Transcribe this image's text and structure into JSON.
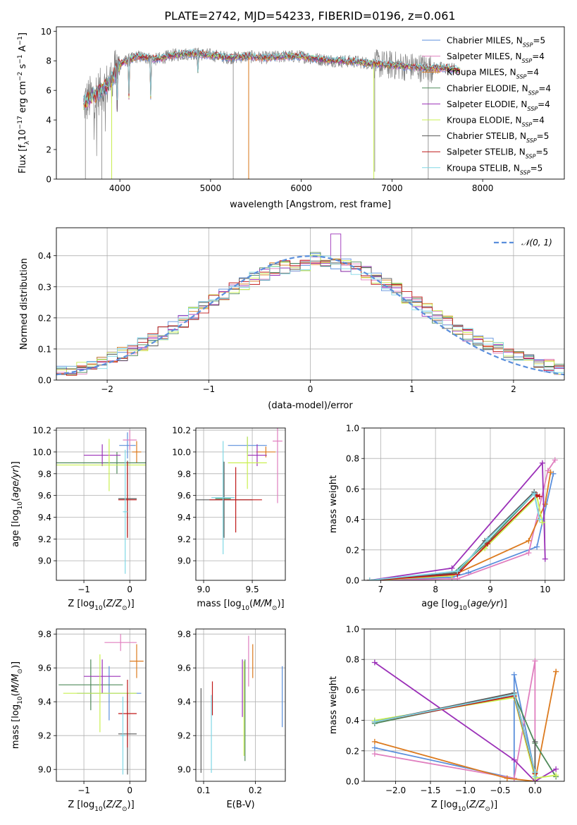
{
  "title": "PLATE=2742, MJD=54233, FIBERID=0196, z=0.061",
  "colors": {
    "series": [
      "#5b8fdc",
      "#e07fbf",
      "#dc7a1e",
      "#4f8a5a",
      "#9b30b8",
      "#c9f050",
      "#5a5a5a",
      "#c01818",
      "#80d8e6"
    ],
    "data_spectrum": "#808080",
    "normal_curve": "#5b8fdc",
    "grid": "#b0b0b0"
  },
  "chart_data": [
    {
      "id": "spectrum",
      "type": "line",
      "xlabel": "wavelength [Angstrom, rest frame]",
      "ylabel": "Flux [f_λ10^-17 erg cm^-2 s^-1 A^-1]",
      "xlim": [
        3300,
        8900
      ],
      "ylim": [
        0,
        10.3
      ],
      "xticks": [
        4000,
        5000,
        6000,
        7000,
        8000
      ],
      "yticks": [
        0,
        2,
        4,
        6,
        8,
        10
      ],
      "grid": false,
      "legend_position": "right",
      "legend": [
        {
          "name": "Chabrier MILES",
          "nssp": "5"
        },
        {
          "name": "Salpeter MILES",
          "nssp": "4"
        },
        {
          "name": "Kroupa MILES",
          "nssp": "4"
        },
        {
          "name": "Chabrier ELODIE",
          "nssp": "4"
        },
        {
          "name": "Salpeter ELODIE",
          "nssp": "4"
        },
        {
          "name": "Kroupa ELODIE",
          "nssp": "4"
        },
        {
          "name": "Chabrier STELIB",
          "nssp": "5"
        },
        {
          "name": "Salpeter STELIB",
          "nssp": "5"
        },
        {
          "name": "Kroupa STELIB",
          "nssp": "5"
        }
      ],
      "continuum": [
        [
          3600,
          5.1
        ],
        [
          3700,
          5.6
        ],
        [
          3800,
          6.0
        ],
        [
          3900,
          6.6
        ],
        [
          4000,
          7.8
        ],
        [
          4200,
          8.3
        ],
        [
          4400,
          8.1
        ],
        [
          4600,
          8.4
        ],
        [
          4800,
          8.5
        ],
        [
          5000,
          8.4
        ],
        [
          5200,
          8.2
        ],
        [
          5400,
          8.3
        ],
        [
          5600,
          8.2
        ],
        [
          5800,
          8.3
        ],
        [
          6000,
          8.3
        ],
        [
          6200,
          8.1
        ],
        [
          6400,
          8.0
        ],
        [
          6600,
          7.95
        ],
        [
          6800,
          7.8
        ],
        [
          7000,
          7.7
        ],
        [
          7200,
          7.6
        ],
        [
          7400,
          7.5
        ],
        [
          7600,
          7.5
        ],
        [
          7700,
          7.4
        ]
      ]
    },
    {
      "id": "residual_hist",
      "type": "histogram",
      "xlabel": "(data-model)/error",
      "ylabel": "Normed distribution",
      "xlim": [
        -2.5,
        2.5
      ],
      "ylim": [
        0,
        0.49
      ],
      "xticks": [
        -2,
        -1,
        0,
        1,
        2
      ],
      "yticks": [
        0.0,
        0.1,
        0.2,
        0.3,
        0.4
      ],
      "grid": true,
      "legend_label": "N(0,1)",
      "legend_position": "top-right",
      "bin_width": 0.1
    },
    {
      "id": "age_vs_Z",
      "type": "errorbar",
      "xlabel": "Z [log10(Z/Z⊙)]",
      "ylabel": "age [log10(age/yr)]",
      "xlim": [
        -1.6,
        0.35
      ],
      "ylim": [
        8.82,
        10.22
      ],
      "xticks": [
        -1,
        0
      ],
      "yticks": [
        9.0,
        9.2,
        9.4,
        9.6,
        9.8,
        10.0,
        10.2
      ],
      "grid": true,
      "points": [
        {
          "x": -0.05,
          "xerr": 0.18,
          "y": 10.06,
          "yerr": 0.12
        },
        {
          "x": 0.0,
          "xerr": 0.15,
          "y": 10.11,
          "yerr": 0.09
        },
        {
          "x": 0.15,
          "xerr": 0.1,
          "y": 10.0,
          "yerr": 0.1
        },
        {
          "x": -0.28,
          "xerr": 1.6,
          "y": 9.9,
          "yerr": 0.1
        },
        {
          "x": -0.6,
          "xerr": 0.4,
          "y": 9.97,
          "yerr": 0.1
        },
        {
          "x": -0.45,
          "xerr": 1.5,
          "y": 9.88,
          "yerr": 0.24
        },
        {
          "x": -0.05,
          "xerr": 0.2,
          "y": 9.57,
          "yerr": 0.35
        },
        {
          "x": -0.05,
          "xerr": 0.2,
          "y": 9.56,
          "yerr": 0.35
        },
        {
          "x": -0.1,
          "xerr": 0.05,
          "y": 9.45,
          "yerr": 0.57
        }
      ]
    },
    {
      "id": "age_vs_mass",
      "type": "errorbar",
      "xlabel": "mass [log10(M/M⊙)]",
      "ylabel": "",
      "xlim": [
        8.92,
        9.84
      ],
      "ylim": [
        8.82,
        10.22
      ],
      "xticks": [
        9.0,
        9.5
      ],
      "yticks": [
        9.0,
        9.2,
        9.4,
        9.6,
        9.8,
        10.0,
        10.2
      ],
      "grid": true,
      "points": [
        {
          "x": 9.45,
          "xerr": 0.2,
          "y": 10.06,
          "yerr": 0.08
        },
        {
          "x": 9.76,
          "xerr": 0.05,
          "y": 10.1,
          "yerr": 0.57
        },
        {
          "x": 9.64,
          "xerr": 0.1,
          "y": 10.0,
          "yerr": 0.05
        },
        {
          "x": 9.2,
          "xerr": 0.08,
          "y": 9.57,
          "yerr": 0.35
        },
        {
          "x": 9.55,
          "xerr": 0.1,
          "y": 9.97,
          "yerr": 0.1
        },
        {
          "x": 9.45,
          "xerr": 0.2,
          "y": 9.9,
          "yerr": 0.24
        },
        {
          "x": 9.21,
          "xerr": 0.29,
          "y": 9.56,
          "yerr": 0.35
        },
        {
          "x": 9.33,
          "xerr": 0.27,
          "y": 9.56,
          "yerr": 0.3
        },
        {
          "x": 9.2,
          "xerr": 0.12,
          "y": 9.58,
          "yerr": 0.52
        }
      ]
    },
    {
      "id": "weight_vs_age",
      "type": "line",
      "xlabel": "age [log10(age/yr)]",
      "ylabel": "mass weight",
      "xlim": [
        6.7,
        10.35
      ],
      "ylim": [
        0,
        1.0
      ],
      "xticks": [
        7,
        8,
        9,
        10
      ],
      "yticks": [
        0.0,
        0.2,
        0.4,
        0.6,
        0.8,
        1.0
      ],
      "grid": true,
      "series": [
        {
          "x": [
            6.8,
            8.3,
            8.6,
            9.85,
            10.15
          ],
          "y": [
            0.0,
            0.02,
            0.05,
            0.22,
            0.7
          ]
        },
        {
          "x": [
            6.8,
            8.4,
            9.7,
            10.05,
            10.18
          ],
          "y": [
            0.0,
            0.01,
            0.18,
            0.72,
            0.79
          ]
        },
        {
          "x": [
            6.8,
            8.3,
            9.7,
            10.0,
            10.1
          ],
          "y": [
            0.0,
            0.03,
            0.26,
            0.5,
            0.71
          ]
        },
        {
          "x": [
            6.8,
            8.3,
            8.95,
            9.8,
            9.9
          ],
          "y": [
            0.0,
            0.04,
            0.25,
            0.57,
            0.4
          ]
        },
        {
          "x": [
            6.8,
            8.3,
            9.95,
            10.0
          ],
          "y": [
            0.0,
            0.08,
            0.77,
            0.14
          ]
        },
        {
          "x": [
            6.8,
            8.3,
            8.9,
            9.85,
            9.95
          ],
          "y": [
            0.0,
            0.03,
            0.21,
            0.55,
            0.38
          ]
        },
        {
          "x": [
            6.8,
            8.4,
            8.9,
            9.8,
            9.85
          ],
          "y": [
            0.0,
            0.05,
            0.26,
            0.58,
            0.56
          ]
        },
        {
          "x": [
            6.8,
            8.4,
            8.95,
            9.85,
            9.9
          ],
          "y": [
            0.0,
            0.04,
            0.24,
            0.56,
            0.55
          ]
        },
        {
          "x": [
            6.8,
            8.4,
            8.95,
            9.8,
            9.9
          ],
          "y": [
            0.0,
            0.06,
            0.27,
            0.57,
            0.4
          ]
        }
      ]
    },
    {
      "id": "mass_vs_Z",
      "type": "errorbar",
      "xlabel": "Z [log10(Z/Z⊙)]",
      "ylabel": "mass [log10(M/M⊙)]",
      "xlim": [
        -1.6,
        0.35
      ],
      "ylim": [
        8.93,
        9.83
      ],
      "xticks": [
        -1,
        0
      ],
      "yticks": [
        9.0,
        9.2,
        9.4,
        9.6,
        9.8
      ],
      "grid": true,
      "points": [
        {
          "x": -0.45,
          "xerr": 0.7,
          "y": 9.45,
          "yerr": 0.16
        },
        {
          "x": -0.2,
          "xerr": 0.35,
          "y": 9.75,
          "yerr": 0.05
        },
        {
          "x": 0.15,
          "xerr": 0.15,
          "y": 9.64,
          "yerr": 0.1
        },
        {
          "x": -0.85,
          "xerr": 0.7,
          "y": 9.5,
          "yerr": 0.15
        },
        {
          "x": -0.6,
          "xerr": 0.4,
          "y": 9.55,
          "yerr": 0.1
        },
        {
          "x": -0.65,
          "xerr": 0.8,
          "y": 9.45,
          "yerr": 0.23
        },
        {
          "x": -0.05,
          "xerr": 0.2,
          "y": 9.21,
          "yerr": 0.24
        },
        {
          "x": -0.05,
          "xerr": 0.2,
          "y": 9.33,
          "yerr": 0.2
        },
        {
          "x": -0.15,
          "xerr": 0.05,
          "y": 9.2,
          "yerr": 0.23
        }
      ]
    },
    {
      "id": "mass_vs_ebv",
      "type": "errorbar",
      "xlabel": "E(B-V)",
      "ylabel": "",
      "xlim": [
        0.085,
        0.258
      ],
      "ylim": [
        8.93,
        9.83
      ],
      "xticks": [
        0.1,
        0.2
      ],
      "yticks": [
        9.0,
        9.2,
        9.4,
        9.6,
        9.8
      ],
      "grid": true,
      "points": [
        {
          "x": 0.252,
          "y": 9.43,
          "yerr": 0.18
        },
        {
          "x": 0.187,
          "y": 9.64,
          "yerr": 0.15
        },
        {
          "x": 0.195,
          "y": 9.64,
          "yerr": 0.1
        },
        {
          "x": 0.18,
          "y": 9.35,
          "yerr": 0.3
        },
        {
          "x": 0.175,
          "y": 9.48,
          "yerr": 0.17
        },
        {
          "x": 0.178,
          "y": 9.36,
          "yerr": 0.28
        },
        {
          "x": 0.095,
          "y": 9.23,
          "yerr": 0.25
        },
        {
          "x": 0.117,
          "y": 9.42,
          "yerr": 0.1
        },
        {
          "x": 0.115,
          "y": 9.21,
          "yerr": 0.23
        }
      ]
    },
    {
      "id": "weight_vs_Z",
      "type": "line",
      "xlabel": "Z [log10(Z/Z⊙)]",
      "ylabel": "mass weight",
      "xlim": [
        -2.45,
        0.42
      ],
      "ylim": [
        0,
        1.0
      ],
      "xticks": [
        -2.0,
        -1.5,
        -1.0,
        -0.5,
        0.0
      ],
      "yticks": [
        0.0,
        0.2,
        0.4,
        0.6,
        0.8,
        1.0
      ],
      "grid": true,
      "series": [
        {
          "x": [
            -2.3,
            -0.3,
            -0.3,
            0.0,
            0.0
          ],
          "y": [
            0.22,
            0.02,
            0.7,
            0.05,
            0.0
          ]
        },
        {
          "x": [
            -2.3,
            -0.3,
            0.0,
            0.0
          ],
          "y": [
            0.18,
            0.02,
            0.79,
            0.0
          ]
        },
        {
          "x": [
            -2.3,
            -0.4,
            0.0,
            0.3,
            0.3
          ],
          "y": [
            0.26,
            0.02,
            0.0,
            0.72,
            0.72
          ]
        },
        {
          "x": [
            -2.3,
            -0.3,
            0.0,
            0.3
          ],
          "y": [
            0.38,
            0.57,
            0.25,
            0.03
          ]
        },
        {
          "x": [
            -2.3,
            -0.3,
            0.0,
            0.3
          ],
          "y": [
            0.78,
            0.14,
            0.0,
            0.08
          ]
        },
        {
          "x": [
            -2.3,
            -0.3,
            0.0,
            0.3
          ],
          "y": [
            0.4,
            0.55,
            0.02,
            0.04
          ]
        },
        {
          "x": [
            -2.3,
            -0.3,
            0.0,
            0.0
          ],
          "y": [
            0.39,
            0.58,
            0.06,
            0.26
          ]
        },
        {
          "x": [
            -2.3,
            -0.3,
            0.0
          ],
          "y": [
            0.39,
            0.56,
            0.05
          ]
        },
        {
          "x": [
            -2.3,
            -0.3,
            0.0,
            0.0
          ],
          "y": [
            0.39,
            0.57,
            0.06,
            0.03
          ]
        }
      ]
    }
  ]
}
